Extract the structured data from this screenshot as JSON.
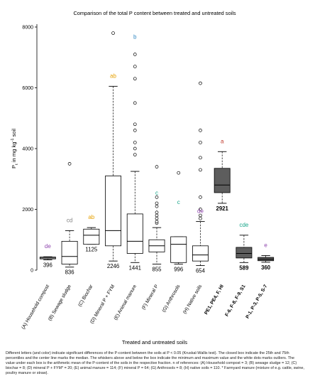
{
  "chart_data": {
    "type": "box",
    "title": "Comparison of the total P content between  treated and untreated soils",
    "xlabel": "Treated and untreated soils",
    "ylabel_parts": {
      "main": "P",
      "sub": "t",
      "mid": " in mg kg",
      "sup": "-1",
      "end": " soil"
    },
    "ylim": [
      0,
      8000
    ],
    "yticks": [
      0,
      2000,
      4000,
      6000,
      8000
    ],
    "grid": false,
    "boxes": [
      {
        "category": "(A) Household compost",
        "min": 340,
        "q1": 370,
        "median": 400,
        "q3": 430,
        "max": 440,
        "outliers": [],
        "mean_label": "396",
        "letter": "de",
        "letter_color": "#8e44ad",
        "fill": "#ffffff",
        "bold": false
      },
      {
        "category": "(B) Sewage sludge",
        "min": 100,
        "q1": 200,
        "median": 450,
        "q3": 950,
        "max": 1300,
        "outliers": [
          3500
        ],
        "mean_label": "836",
        "letter": "cd",
        "letter_color": "#7f7f7f",
        "fill": "#ffffff",
        "bold": false
      },
      {
        "category": "(C) Biochar",
        "min": 850,
        "q1": 850,
        "median": 1150,
        "q3": 1350,
        "max": 1400,
        "outliers": [],
        "mean_label": "1125",
        "letter": "ab",
        "letter_color": "#e6a000",
        "fill": "#ffffff",
        "bold": false
      },
      {
        "category": "(D) Mineral P + FYM",
        "min": 300,
        "q1": 800,
        "median": 1300,
        "q3": 3100,
        "max": 6050,
        "outliers": [
          7800
        ],
        "mean_label": "2246",
        "letter": "ab",
        "letter_color": "#e6a000",
        "fill": "#ffffff",
        "bold": false
      },
      {
        "category": "(E) Animal manure",
        "min": 250,
        "q1": 550,
        "median": 950,
        "q3": 1850,
        "max": 3250,
        "outliers": [
          3800,
          4000,
          4200,
          4600,
          4800,
          5500,
          6300,
          6700,
          7100
        ],
        "mean_label": "1441",
        "letter": "b",
        "letter_color": "#2e86c1",
        "fill": "#ffffff",
        "bold": false
      },
      {
        "category": "(F) Mineral P",
        "min": 200,
        "q1": 600,
        "median": 800,
        "q3": 1000,
        "max": 1400,
        "outliers": [
          1550,
          1600,
          1700,
          1800,
          1900,
          2100,
          2200,
          2400,
          3400
        ],
        "mean_label": "855",
        "letter": "c",
        "letter_color": "#17a589",
        "fill": "#ffffff",
        "bold": false
      },
      {
        "category": "(G) Anthrosols",
        "min": 200,
        "q1": 250,
        "median": 850,
        "q3": 1100,
        "max": 1100,
        "outliers": [
          3200
        ],
        "mean_label": "996",
        "letter": "c",
        "letter_color": "#17a589",
        "fill": "#ffffff",
        "bold": false
      },
      {
        "category": "(H) Native soils",
        "min": 150,
        "q1": 300,
        "median": 500,
        "q3": 800,
        "max": 1600,
        "outliers": [
          1700,
          1800,
          2000,
          2400,
          3300,
          3700,
          4200,
          4600,
          6150
        ],
        "mean_label": "654",
        "letter": "de",
        "letter_color": "#8e44ad",
        "fill": "#ffffff",
        "bold": false
      },
      {
        "category": "PE1, PE4, F, HI",
        "min": 2200,
        "q1": 2550,
        "median": 2800,
        "q3": 3350,
        "max": 3900,
        "outliers": [],
        "mean_label": "2921",
        "letter": "a",
        "letter_color": "#c0392b",
        "fill": "#5d5d5d",
        "bold": true
      },
      {
        "category": "F-6, F-8, F-9, S1",
        "min": 250,
        "q1": 400,
        "median": 550,
        "q3": 750,
        "max": 1150,
        "outliers": [],
        "mean_label": "589",
        "letter": "cde",
        "letter_color": "#17a589",
        "fill": "#5d5d5d",
        "bold": true
      },
      {
        "category": "P-1, P-3, P-5, S-7",
        "min": 260,
        "q1": 310,
        "median": 360,
        "q3": 420,
        "max": 480,
        "outliers": [],
        "mean_label": "360",
        "letter": "e",
        "letter_color": "#8e44ad",
        "fill": "#5d5d5d",
        "bold": true
      }
    ]
  },
  "caption": "Different letters (and color) indicate significant differences of the P-content between the soils at P < 0.05 (Kruskal-Wallis test). The closed box indicate the 25th and 75th percentiles and the center line marks the median. The whiskers above and below the box indicate the minimum and maximum value and the white dots marks outliers. The value under each box is the arithmetic mean of the P-content of the soils in the respective fraction. n of references: (A) Household compost = 3; (B) sewage sludge = 12; (C) biochar = 8; (D) mineral P + FYM* = 20; (E) animal manure = 114; (F) mineral P = 64; (G) Anthrosols = 8; (H) native soils = 110. * Farmyard manure (mixture of e.g. cattle, swine, poultry manure or straw)."
}
